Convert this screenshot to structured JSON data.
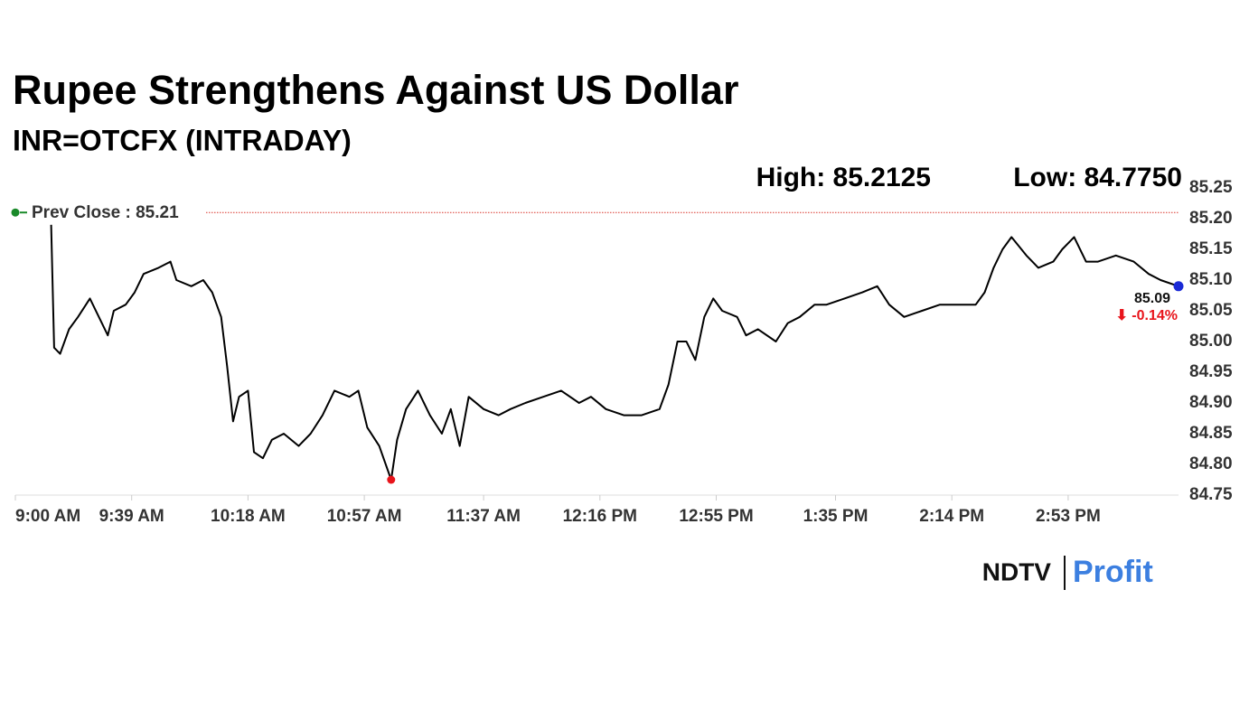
{
  "chart_data": {
    "type": "line",
    "title": "Rupee Strengthens Against US Dollar",
    "subtitle": "INR=OTCFX (INTRADAY)",
    "high_label": "High: 85.2125",
    "low_label": "Low: 84.7750",
    "prev_close": {
      "value": 85.21,
      "label": "Prev Close : 85.21"
    },
    "annotations": [
      "85.09",
      "⬇ -0.14%"
    ],
    "x": [
      12,
      13,
      15,
      18,
      21,
      25,
      28,
      31,
      33,
      37,
      40,
      43,
      48,
      52,
      54,
      59,
      63,
      66,
      69,
      71,
      73,
      75,
      78,
      80,
      83,
      86,
      90,
      95,
      99,
      103,
      107,
      112,
      115,
      118,
      122,
      126,
      128,
      131,
      135,
      139,
      143,
      146,
      149,
      152,
      157,
      162,
      166,
      171,
      177,
      183,
      189,
      193,
      198,
      204,
      210,
      216,
      219,
      222,
      225,
      228,
      231,
      234,
      237,
      242,
      245,
      249,
      255,
      259,
      263,
      268,
      272,
      278,
      284,
      289,
      293,
      298,
      304,
      310,
      316,
      322,
      325,
      328,
      331,
      334,
      339,
      343,
      348,
      351,
      355,
      359,
      363,
      369,
      375,
      380,
      384,
      390
    ],
    "series": [
      {
        "name": "INR=OTCFX",
        "color": "#000000",
        "values": [
          85.19,
          84.99,
          84.98,
          85.02,
          85.04,
          85.07,
          85.04,
          85.01,
          85.05,
          85.06,
          85.08,
          85.11,
          85.12,
          85.13,
          85.1,
          85.09,
          85.1,
          85.08,
          85.04,
          84.96,
          84.87,
          84.91,
          84.92,
          84.82,
          84.81,
          84.84,
          84.85,
          84.83,
          84.85,
          84.88,
          84.92,
          84.91,
          84.92,
          84.86,
          84.83,
          84.775,
          84.84,
          84.89,
          84.92,
          84.88,
          84.85,
          84.89,
          84.83,
          84.91,
          84.89,
          84.88,
          84.89,
          84.9,
          84.91,
          84.92,
          84.9,
          84.91,
          84.89,
          84.88,
          84.88,
          84.89,
          84.93,
          85.0,
          85.0,
          84.97,
          85.04,
          85.07,
          85.05,
          85.04,
          85.01,
          85.02,
          85.0,
          85.03,
          85.04,
          85.06,
          85.06,
          85.07,
          85.08,
          85.09,
          85.06,
          85.04,
          85.05,
          85.06,
          85.06,
          85.06,
          85.08,
          85.12,
          85.15,
          85.17,
          85.14,
          85.12,
          85.13,
          85.15,
          85.17,
          85.13,
          85.13,
          85.14,
          85.13,
          85.11,
          85.1,
          85.09
        ]
      }
    ],
    "xlim": [
      0,
      390
    ],
    "xticks": [
      {
        "value": 0,
        "label": "9:00 AM"
      },
      {
        "value": 39,
        "label": "9:39 AM"
      },
      {
        "value": 78,
        "label": "10:18 AM"
      },
      {
        "value": 117,
        "label": "10:57 AM"
      },
      {
        "value": 157,
        "label": "11:37 AM"
      },
      {
        "value": 196,
        "label": "12:16 PM"
      },
      {
        "value": 235,
        "label": "12:55 PM"
      },
      {
        "value": 275,
        "label": "1:35 PM"
      },
      {
        "value": 314,
        "label": "2:14 PM"
      },
      {
        "value": 353,
        "label": "2:53 PM"
      }
    ],
    "ylim": [
      84.75,
      85.25
    ],
    "yticks": [
      84.75,
      {
        "value": 84.8,
        "label": "84.80"
      },
      84.85,
      {
        "value": 84.9,
        "label": "84.90"
      },
      84.95,
      {
        "value": 85,
        "label": "85.00"
      },
      85.05,
      {
        "value": 85.1,
        "label": "85.10"
      },
      85.15,
      {
        "value": 85.2,
        "label": "85.20"
      },
      85.25
    ],
    "low_color": "#e8141b",
    "last_color": "#1a2ad6",
    "prev_close_color": "#d9342b"
  },
  "logo": {
    "brand": "NDTV",
    "product": "Profit"
  }
}
